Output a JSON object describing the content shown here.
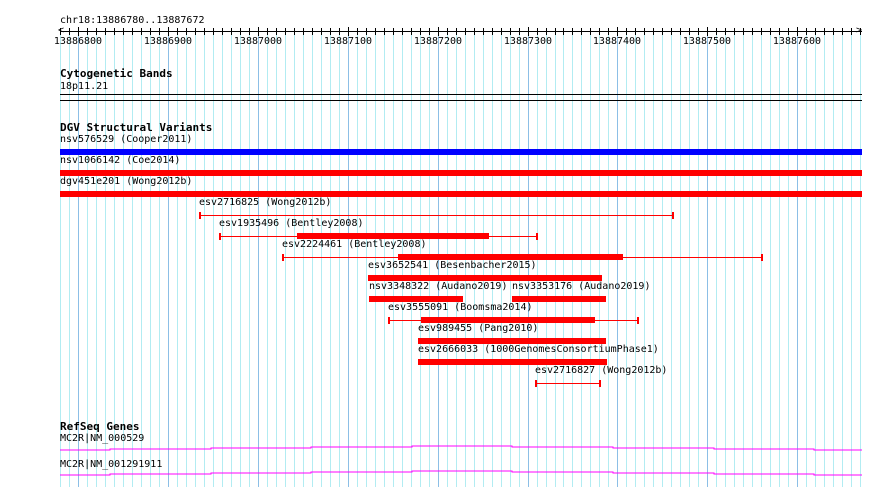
{
  "ruler": {
    "location": "chr18:13886780..13887672",
    "start": 13886780,
    "end": 13887672,
    "tick_labels": [
      "13886800",
      "13886900",
      "13887000",
      "13887100",
      "13887200",
      "13887300",
      "13887400",
      "13887500",
      "13887600"
    ]
  },
  "tracks": {
    "cytoband": {
      "title": "Cytogenetic Bands",
      "band": "18p11.21"
    },
    "dgv": {
      "title": "DGV Structural Variants",
      "features": [
        {
          "label": "nsv576529 (Cooper2011)",
          "color": "#0000ff",
          "start": 13886780,
          "end": 13887672,
          "thick_start": 13886780,
          "thick_end": 13887672
        },
        {
          "label": "nsv1066142 (Coe2014)",
          "color": "#ff0000",
          "start": 13886780,
          "end": 13887672,
          "thick_start": 13886780,
          "thick_end": 13887672
        },
        {
          "label": "dgv451e201 (Wong2012b)",
          "color": "#ff0000",
          "start": 13886780,
          "end": 13887672,
          "thick_start": 13886780,
          "thick_end": 13887672
        },
        {
          "label": "esv2716825 (Wong2012b)",
          "color": "#ff0000",
          "start": 13886935,
          "end": 13887462
        },
        {
          "label": "esv1935496 (Bentley2008)",
          "color": "#ff0000",
          "start": 13886957,
          "end": 13887311,
          "thick_start": 13887044,
          "thick_end": 13887257
        },
        {
          "label": "esv2224461 (Bentley2008)",
          "color": "#ff0000",
          "start": 13887027,
          "end": 13887561,
          "thick_start": 13887156,
          "thick_end": 13887406
        },
        {
          "label": "esv3652541 (Besenbacher2015)",
          "color": "#ff0000",
          "start": 13887123,
          "end": 13887383,
          "thick_start": 13887123,
          "thick_end": 13887383
        },
        {
          "label": "nsv3348322 (Audano2019)",
          "color": "#ff0000",
          "start": 13887124,
          "end": 13887228,
          "thick_start": 13887124,
          "thick_end": 13887228,
          "row": 7
        },
        {
          "label": "nsv3353176 (Audano2019)",
          "color": "#ff0000",
          "start": 13887283,
          "end": 13887388,
          "thick_start": 13887283,
          "thick_end": 13887388,
          "row": 7
        },
        {
          "label": "esv3555091 (Boomsma2014)",
          "color": "#ff0000",
          "start": 13887145,
          "end": 13887423,
          "thick_start": 13887182,
          "thick_end": 13887376
        },
        {
          "label": "esv989455 (Pang2010)",
          "color": "#ff0000",
          "start": 13887178,
          "end": 13887387,
          "thick_start": 13887178,
          "thick_end": 13887387
        },
        {
          "label": "esv2666033 (1000GenomesConsortiumPhase1)",
          "color": "#ff0000",
          "start": 13887178,
          "end": 13887388,
          "thick_start": 13887178,
          "thick_end": 13887388
        },
        {
          "label": "esv2716827 (Wong2012b)",
          "color": "#ff0000",
          "start": 13887308,
          "end": 13887381
        }
      ]
    },
    "refseq": {
      "title": "RefSeq Genes",
      "color": "#ff00ff",
      "genes": [
        {
          "label": "MC2R|NM_000529"
        },
        {
          "label": "MC2R|NM_001291911"
        }
      ]
    }
  }
}
